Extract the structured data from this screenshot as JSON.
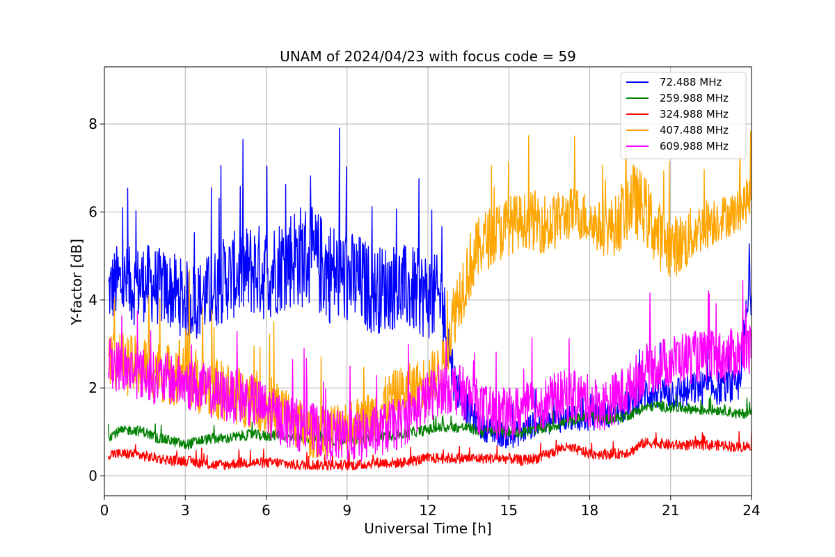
{
  "chart_data": {
    "type": "line",
    "title": "UNAM of 2024/04/23 with focus code = 59",
    "xlabel": "Universal Time [h]",
    "ylabel": "Y-factor [dB]",
    "xlim": [
      0,
      24
    ],
    "ylim": [
      -0.45,
      9.3
    ],
    "xticks": [
      0,
      3,
      6,
      9,
      12,
      15,
      18,
      21,
      24
    ],
    "yticks": [
      0,
      2,
      4,
      6,
      8
    ],
    "grid": true,
    "legend_position": "top-right",
    "x": [
      0.15,
      0.5,
      1.0,
      1.5,
      2.0,
      2.5,
      3.0,
      3.5,
      4.0,
      4.5,
      5.0,
      5.5,
      6.0,
      6.5,
      7.0,
      7.5,
      8.0,
      8.5,
      9.0,
      9.5,
      10.0,
      10.5,
      11.0,
      11.5,
      12.0,
      12.5,
      13.0,
      13.5,
      14.0,
      14.5,
      15.0,
      15.5,
      16.0,
      16.5,
      17.0,
      17.5,
      18.0,
      18.5,
      19.0,
      19.5,
      20.0,
      20.5,
      21.0,
      21.5,
      22.0,
      22.5,
      23.0,
      23.5,
      24.0
    ],
    "series": [
      {
        "name": " 72.488 MHz",
        "color": "#0000ff",
        "values": [
          4.2,
          4.4,
          4.3,
          4.4,
          4.3,
          4.2,
          4.0,
          4.0,
          4.2,
          4.5,
          4.6,
          4.7,
          4.6,
          4.8,
          5.0,
          5.0,
          4.8,
          4.6,
          4.5,
          4.4,
          4.2,
          4.3,
          4.3,
          4.2,
          4.1,
          4.0,
          2.1,
          1.5,
          1.1,
          1.0,
          0.9,
          1.0,
          1.2,
          1.2,
          1.3,
          1.3,
          1.3,
          1.4,
          1.4,
          1.7,
          1.9,
          1.9,
          1.9,
          1.9,
          2.0,
          2.0,
          2.0,
          2.0,
          4.5
        ],
        "amp": [
          0.8,
          0.9,
          0.9,
          0.9,
          0.9,
          0.9,
          0.9,
          0.9,
          0.9,
          1.0,
          1.0,
          1.1,
          1.1,
          1.1,
          1.2,
          1.2,
          1.2,
          1.2,
          1.1,
          1.1,
          1.0,
          1.0,
          1.0,
          1.0,
          1.0,
          1.0,
          0.5,
          0.4,
          0.3,
          0.3,
          0.3,
          0.3,
          0.3,
          0.3,
          0.3,
          0.3,
          0.3,
          0.3,
          0.3,
          0.4,
          0.4,
          0.4,
          0.4,
          0.4,
          0.4,
          0.4,
          0.4,
          0.4,
          0.8
        ]
      },
      {
        "name": "259.988 MHz",
        "color": "#008000",
        "values": [
          0.9,
          1.0,
          1.05,
          1.0,
          0.85,
          0.8,
          0.7,
          0.8,
          0.85,
          0.85,
          0.9,
          0.95,
          0.9,
          0.95,
          0.85,
          0.85,
          0.85,
          0.8,
          0.85,
          0.85,
          0.9,
          0.9,
          0.95,
          1.0,
          1.05,
          1.1,
          1.1,
          1.1,
          1.0,
          1.0,
          1.0,
          1.0,
          1.05,
          1.1,
          1.2,
          1.3,
          1.35,
          1.3,
          1.3,
          1.4,
          1.55,
          1.6,
          1.55,
          1.55,
          1.5,
          1.5,
          1.5,
          1.4,
          1.45
        ],
        "amp": [
          0.12,
          0.12,
          0.12,
          0.12,
          0.12,
          0.12,
          0.12,
          0.12,
          0.12,
          0.12,
          0.12,
          0.12,
          0.12,
          0.12,
          0.12,
          0.12,
          0.12,
          0.12,
          0.12,
          0.12,
          0.12,
          0.12,
          0.12,
          0.12,
          0.12,
          0.12,
          0.12,
          0.12,
          0.12,
          0.12,
          0.12,
          0.12,
          0.12,
          0.12,
          0.12,
          0.12,
          0.12,
          0.12,
          0.12,
          0.12,
          0.12,
          0.12,
          0.12,
          0.12,
          0.12,
          0.12,
          0.12,
          0.12,
          0.12
        ]
      },
      {
        "name": "324.988 MHz",
        "color": "#ff0000",
        "values": [
          0.5,
          0.5,
          0.5,
          0.45,
          0.4,
          0.35,
          0.35,
          0.3,
          0.25,
          0.25,
          0.3,
          0.3,
          0.3,
          0.3,
          0.25,
          0.25,
          0.25,
          0.25,
          0.25,
          0.25,
          0.3,
          0.3,
          0.3,
          0.35,
          0.4,
          0.4,
          0.4,
          0.4,
          0.4,
          0.4,
          0.4,
          0.35,
          0.4,
          0.5,
          0.65,
          0.6,
          0.5,
          0.5,
          0.5,
          0.55,
          0.75,
          0.75,
          0.7,
          0.7,
          0.7,
          0.7,
          0.7,
          0.65,
          0.7
        ],
        "amp": [
          0.12,
          0.12,
          0.12,
          0.12,
          0.12,
          0.12,
          0.12,
          0.12,
          0.12,
          0.12,
          0.12,
          0.12,
          0.12,
          0.12,
          0.12,
          0.12,
          0.12,
          0.12,
          0.12,
          0.12,
          0.12,
          0.12,
          0.12,
          0.12,
          0.12,
          0.12,
          0.12,
          0.12,
          0.12,
          0.12,
          0.12,
          0.12,
          0.12,
          0.12,
          0.12,
          0.12,
          0.12,
          0.12,
          0.12,
          0.12,
          0.12,
          0.12,
          0.12,
          0.12,
          0.12,
          0.12,
          0.12,
          0.12,
          0.12
        ]
      },
      {
        "name": "407.488 MHz",
        "color": "#ffa500",
        "values": [
          2.8,
          2.6,
          2.5,
          2.5,
          2.4,
          2.3,
          2.5,
          2.1,
          2.0,
          1.9,
          1.8,
          1.8,
          1.6,
          1.5,
          1.3,
          1.0,
          1.0,
          1.1,
          1.2,
          1.2,
          1.4,
          1.7,
          1.9,
          2.0,
          2.2,
          2.4,
          3.8,
          4.7,
          5.3,
          5.5,
          5.7,
          5.8,
          5.8,
          5.7,
          5.9,
          6.0,
          5.8,
          5.6,
          5.7,
          6.3,
          6.1,
          5.5,
          5.2,
          5.3,
          5.6,
          5.8,
          5.9,
          6.0,
          6.4
        ],
        "amp": [
          0.7,
          0.7,
          0.7,
          0.7,
          0.7,
          0.7,
          0.9,
          0.7,
          0.7,
          0.7,
          0.7,
          0.7,
          0.7,
          0.7,
          0.6,
          0.6,
          0.6,
          0.6,
          0.6,
          0.6,
          0.6,
          0.6,
          0.6,
          0.6,
          0.6,
          0.6,
          0.8,
          0.8,
          0.7,
          0.7,
          0.7,
          0.6,
          0.7,
          0.7,
          0.6,
          0.6,
          0.6,
          0.6,
          0.7,
          0.9,
          0.8,
          0.8,
          0.7,
          0.7,
          0.6,
          0.6,
          0.5,
          0.5,
          0.5
        ]
      },
      {
        "name": "609.988 MHz",
        "color": "#ff00ff",
        "values": [
          2.6,
          2.5,
          2.4,
          2.3,
          2.2,
          2.2,
          2.1,
          2.0,
          1.9,
          1.8,
          1.8,
          1.7,
          1.5,
          1.3,
          1.2,
          1.1,
          1.0,
          0.9,
          0.9,
          0.9,
          1.0,
          1.1,
          1.2,
          1.5,
          1.8,
          2.0,
          2.0,
          1.8,
          1.5,
          1.4,
          1.4,
          1.5,
          1.6,
          1.7,
          1.8,
          1.8,
          1.7,
          1.6,
          1.8,
          2.0,
          2.4,
          2.5,
          2.6,
          2.7,
          2.7,
          2.7,
          2.7,
          2.8,
          2.9
        ],
        "amp": [
          0.6,
          0.6,
          0.6,
          0.6,
          0.6,
          0.6,
          0.6,
          0.6,
          0.6,
          0.6,
          0.6,
          0.6,
          0.6,
          0.6,
          0.6,
          0.6,
          0.6,
          0.6,
          0.6,
          0.6,
          0.6,
          0.6,
          0.6,
          0.6,
          0.6,
          0.6,
          0.6,
          0.6,
          0.6,
          0.6,
          0.6,
          0.6,
          0.6,
          0.6,
          0.6,
          0.6,
          0.6,
          0.6,
          0.6,
          0.6,
          0.6,
          0.6,
          0.6,
          0.6,
          0.6,
          0.6,
          0.6,
          0.6,
          0.6
        ]
      }
    ]
  }
}
